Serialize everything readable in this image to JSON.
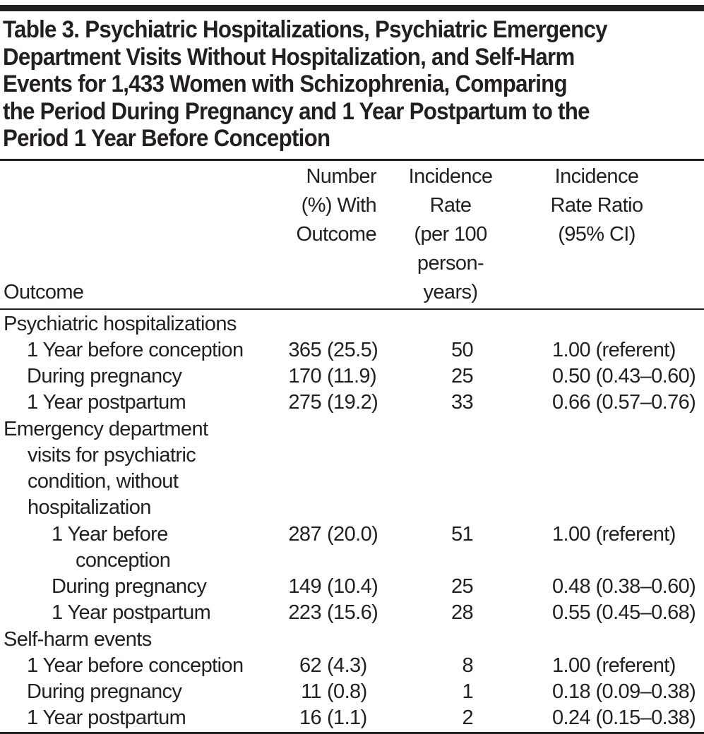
{
  "colors": {
    "ink": "#231f20",
    "background": "#ffffff"
  },
  "table": {
    "title": "Table 3. Psychiatric Hospitalizations, Psychiatric Emergency\nDepartment Visits Without Hospitalization, and Self-Harm\nEvents for 1,433 Women with Schizophrenia, Comparing\nthe Period During Pregnancy and 1 Year Postpartum to the\nPeriod 1 Year Before Conception",
    "columns": {
      "outcome": "Outcome",
      "number": "Number\n(%) With\nOutcome",
      "rate": "Incidence Rate\n(per 100\nperson-years)",
      "irr": "Incidence\nRate Ratio\n(95% CI)"
    },
    "rows": [
      {
        "label": "Psychiatric hospitalizations",
        "level": "section",
        "count": "",
        "pct": "",
        "rate": "",
        "irr": ""
      },
      {
        "label": "1 Year before conception",
        "level": "sub",
        "count": "365",
        "pct": "(25.5)",
        "rate": "50",
        "irr": "1.00 (referent)"
      },
      {
        "label": "During pregnancy",
        "level": "sub",
        "count": "170",
        "pct": "(11.9)",
        "rate": "25",
        "irr": "0.50 (0.43–0.60)"
      },
      {
        "label": "1 Year postpartum",
        "level": "sub",
        "count": "275",
        "pct": "(19.2)",
        "rate": "33",
        "irr": "0.66 (0.57–0.76)"
      },
      {
        "label": "Emergency department\nvisits for psychiatric\ncondition, without\nhospitalization",
        "level": "section",
        "count": "",
        "pct": "",
        "rate": "",
        "irr": ""
      },
      {
        "label": "1 Year before\nconception",
        "level": "sub2",
        "count": "287",
        "pct": "(20.0)",
        "rate": "51",
        "irr": "1.00 (referent)"
      },
      {
        "label": "During pregnancy",
        "level": "sub2",
        "count": "149",
        "pct": "(10.4)",
        "rate": "25",
        "irr": "0.48 (0.38–0.60)"
      },
      {
        "label": "1 Year postpartum",
        "level": "sub2",
        "count": "223",
        "pct": "(15.6)",
        "rate": "28",
        "irr": "0.55 (0.45–0.68)"
      },
      {
        "label": "Self-harm events",
        "level": "section",
        "count": "",
        "pct": "",
        "rate": "",
        "irr": ""
      },
      {
        "label": "1 Year before conception",
        "level": "sub",
        "count": "62",
        "pct": "(4.3)",
        "rate": "8",
        "irr": "1.00 (referent)"
      },
      {
        "label": "During pregnancy",
        "level": "sub",
        "count": "11",
        "pct": "(0.8)",
        "rate": "1",
        "irr": "0.18 (0.09–0.38)"
      },
      {
        "label": "1 Year postpartum",
        "level": "sub",
        "count": "16",
        "pct": "(1.1)",
        "rate": "2",
        "irr": "0.24 (0.15–0.38)"
      }
    ]
  }
}
